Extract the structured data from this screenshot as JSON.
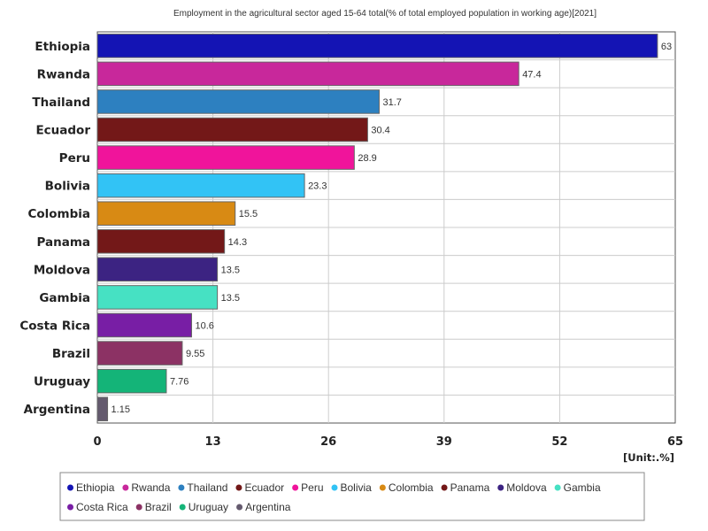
{
  "chart_data": {
    "type": "bar",
    "orientation": "horizontal",
    "title": "Employment in the agricultural sector aged 15-64 total(% of total employed population in working age)[2021]",
    "unit": "[Unit:.%]",
    "xlim": [
      0,
      65
    ],
    "xticks": [
      "0",
      "13",
      "26",
      "39",
      "52",
      "65"
    ],
    "grid": true,
    "legend_position": "bottom",
    "categories": [
      "Ethiopia",
      "Rwanda",
      "Thailand",
      "Ecuador",
      "Peru",
      "Bolivia",
      "Colombia",
      "Panama",
      "Moldova",
      "Gambia",
      "Costa Rica",
      "Brazil",
      "Uruguay",
      "Argentina"
    ],
    "values": [
      63,
      47.4,
      31.7,
      30.4,
      28.9,
      23.3,
      15.5,
      14.3,
      13.5,
      13.5,
      10.6,
      9.55,
      7.76,
      1.15
    ],
    "value_labels": [
      "63",
      "47.4",
      "31.7",
      "30.4",
      "28.9",
      "23.3",
      "15.5",
      "14.3",
      "13.5",
      "13.5",
      "10.6",
      "9.55",
      "7.76",
      "1.15"
    ],
    "colors": [
      "#1414b4",
      "#c8289b",
      "#2d80c0",
      "#731818",
      "#f0149b",
      "#32c3f5",
      "#d88a14",
      "#731818",
      "#3c2382",
      "#46e1c3",
      "#781ea5",
      "#8c3264",
      "#14b478",
      "#645a6e"
    ]
  }
}
